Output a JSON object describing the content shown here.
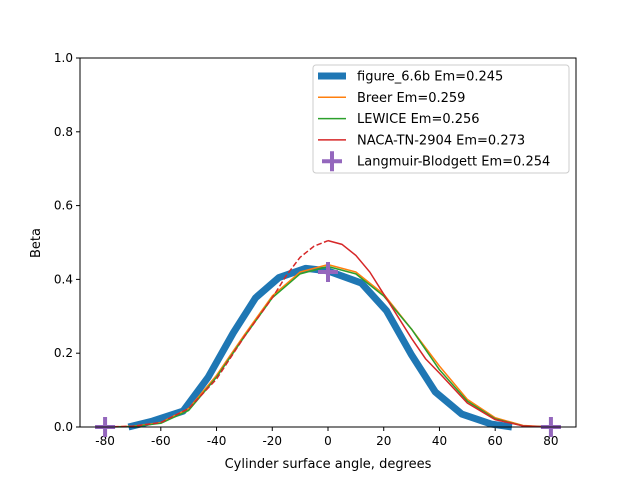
{
  "chart_data": {
    "type": "line",
    "title": "",
    "xlabel": "Cylinder surface angle, degrees",
    "ylabel": "Beta",
    "xlim": [
      -89,
      89
    ],
    "ylim": [
      0,
      1.0
    ],
    "xticks": [
      -80,
      -60,
      -40,
      -20,
      0,
      20,
      40,
      60,
      80
    ],
    "yticks": [
      0.0,
      0.2,
      0.4,
      0.6,
      0.8,
      1.0
    ],
    "ytick_labels": [
      "0.0",
      "0.2",
      "0.4",
      "0.6",
      "0.8",
      "1.0"
    ],
    "grid": false,
    "legend_position": "top-right",
    "series": [
      {
        "name": "figure_6.6b Em=0.245",
        "color": "#1f77b4",
        "style": "thick",
        "x": [
          -71.6,
          -63,
          -52,
          -43,
          -34,
          -26,
          -17.6,
          -8,
          0,
          12,
          21,
          30,
          38.5,
          48,
          58.6,
          66
        ],
        "y": [
          0,
          0.016,
          0.043,
          0.135,
          0.255,
          0.35,
          0.405,
          0.43,
          0.423,
          0.39,
          0.315,
          0.195,
          0.095,
          0.035,
          0.008,
          0
        ]
      },
      {
        "name": "Breer Em=0.259",
        "color": "#ff7f0e",
        "style": "solid",
        "x": [
          -80,
          -70,
          -60,
          -50,
          -40,
          -30,
          -20,
          -10,
          0,
          10,
          20,
          30,
          40,
          50,
          60,
          70,
          80
        ],
        "y": [
          0,
          0.002,
          0.012,
          0.05,
          0.14,
          0.25,
          0.355,
          0.42,
          0.44,
          0.42,
          0.36,
          0.265,
          0.165,
          0.075,
          0.025,
          0.004,
          0
        ]
      },
      {
        "name": "LEWICE Em=0.256",
        "color": "#2ca02c",
        "style": "solid",
        "x": [
          -80,
          -70,
          -60,
          -50,
          -40,
          -30,
          -20,
          -10,
          0,
          10,
          20,
          30,
          40,
          50,
          60,
          70,
          80
        ],
        "y": [
          0,
          0.001,
          0.01,
          0.045,
          0.135,
          0.245,
          0.35,
          0.415,
          0.435,
          0.415,
          0.355,
          0.265,
          0.155,
          0.07,
          0.022,
          0.003,
          0
        ]
      },
      {
        "name": "NACA-TN-2904 Em=0.273",
        "color": "#d62728",
        "style": "dashed-left",
        "x": [
          -80,
          -70,
          -60,
          -50,
          -40,
          -30,
          -20,
          -15,
          -10,
          -5,
          0,
          5,
          10,
          15,
          20,
          25,
          30,
          35,
          40,
          50,
          60,
          70,
          80
        ],
        "y": [
          0,
          0.002,
          0.012,
          0.05,
          0.13,
          0.245,
          0.35,
          0.41,
          0.46,
          0.49,
          0.505,
          0.495,
          0.465,
          0.42,
          0.36,
          0.3,
          0.24,
          0.185,
          0.146,
          0.065,
          0.02,
          0.003,
          0
        ]
      },
      {
        "name": "Langmuir-Blodgett Em=0.254",
        "color": "#9467bd",
        "style": "plus-marker",
        "x": [
          -80,
          0,
          80
        ],
        "y": [
          0,
          0.42,
          0
        ]
      }
    ]
  }
}
